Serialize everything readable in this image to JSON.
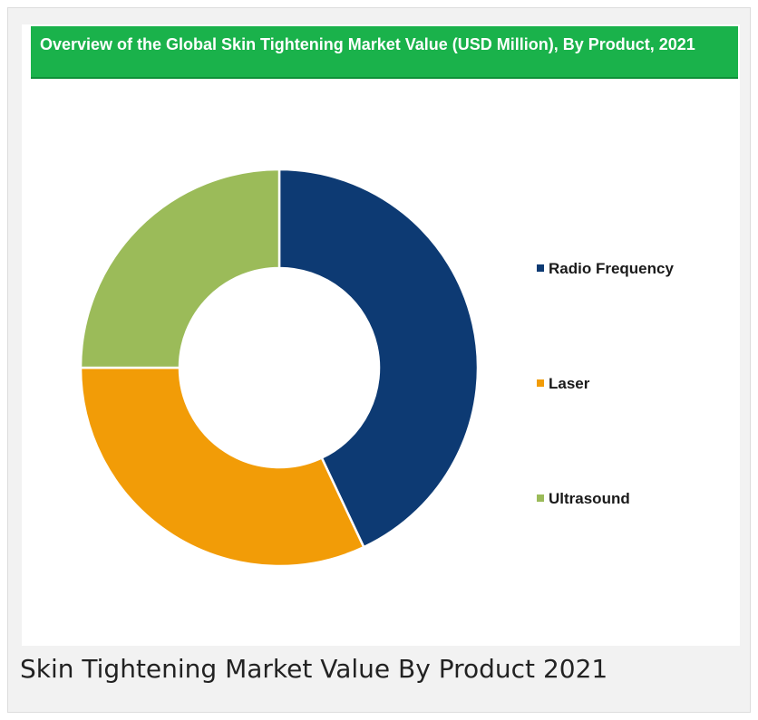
{
  "chart_data": {
    "type": "pie",
    "variant": "donut",
    "title": "Overview of the Global Skin Tightening Market Value (USD Million), By Product, 2021",
    "categories": [
      "Radio Frequency",
      "Laser",
      "Ultrasound"
    ],
    "values": [
      43,
      32,
      25
    ],
    "unit": "%",
    "colors": [
      "#0d3a73",
      "#f29c07",
      "#9bbb59"
    ],
    "legend_position": "right",
    "data_labels": false
  },
  "caption": "Skin Tightening Market Value By Product 2021"
}
